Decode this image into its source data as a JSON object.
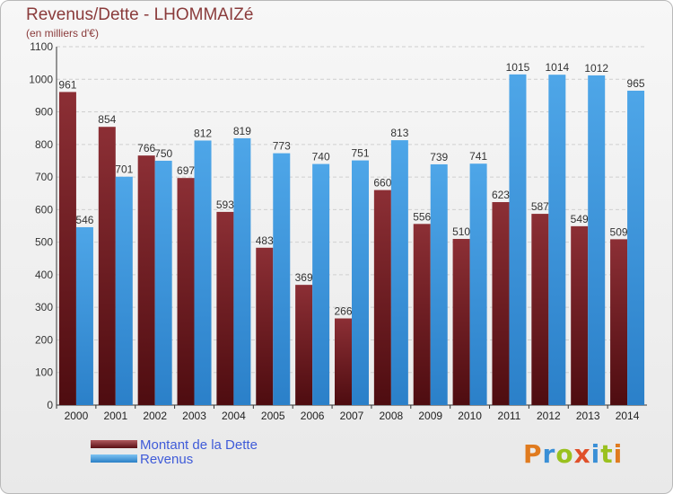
{
  "title": "Revenus/Dette - LHOMMAIZé",
  "subtitle": "(en milliers d'€)",
  "legend": [
    {
      "label": "Montant de la Dette",
      "color": "#7a1f24"
    },
    {
      "label": "Revenus",
      "color": "#3a95dc"
    }
  ],
  "logo": {
    "text": "Proxiti",
    "letters": [
      {
        "ch": "P",
        "color": "#e07b1f"
      },
      {
        "ch": "r",
        "color": "#3a8fd6"
      },
      {
        "ch": "o",
        "color": "#9ac11f"
      },
      {
        "ch": "x",
        "color": "#e0502a"
      },
      {
        "ch": "i",
        "color": "#3a8fd6"
      },
      {
        "ch": "t",
        "color": "#9ac11f"
      },
      {
        "ch": "i",
        "color": "#e07b1f"
      }
    ]
  },
  "chart_data": {
    "type": "bar",
    "categories": [
      "2000",
      "2001",
      "2002",
      "2003",
      "2004",
      "2005",
      "2006",
      "2007",
      "2008",
      "2009",
      "2010",
      "2011",
      "2012",
      "2013",
      "2014"
    ],
    "series": [
      {
        "name": "Montant de la Dette",
        "color": "#7a1f24",
        "values": [
          961,
          854,
          766,
          697,
          593,
          483,
          369,
          266,
          660,
          556,
          510,
          623,
          587,
          549,
          509
        ]
      },
      {
        "name": "Revenus",
        "color": "#3a95dc",
        "values": [
          546,
          701,
          750,
          812,
          819,
          773,
          740,
          751,
          813,
          739,
          741,
          1015,
          1014,
          1012,
          965
        ]
      }
    ],
    "ylim": [
      0,
      1100
    ],
    "yticks": [
      0,
      100,
      200,
      300,
      400,
      500,
      600,
      700,
      800,
      900,
      1000,
      1100
    ],
    "grid": true,
    "legend_position": "bottom-left"
  }
}
